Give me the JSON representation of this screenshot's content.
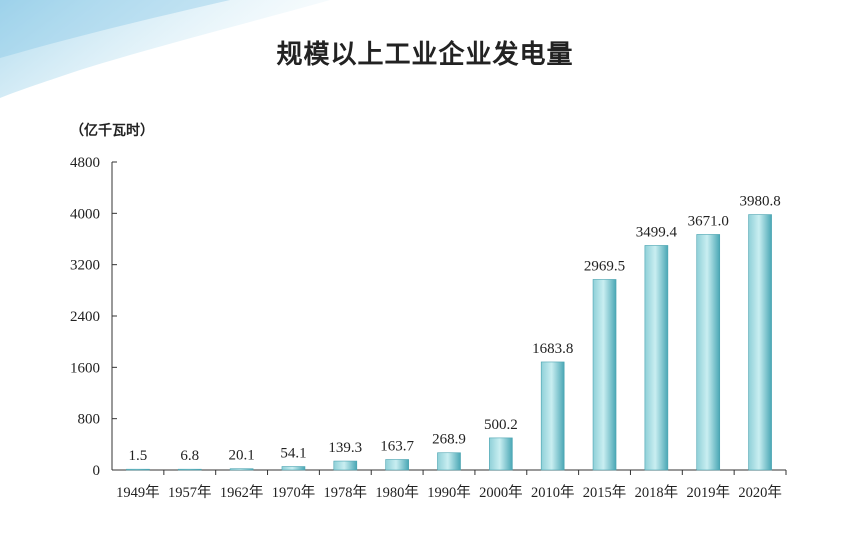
{
  "title": "规模以上工业企业发电量",
  "unit_label": "（亿千瓦时）",
  "chart_data": {
    "type": "bar",
    "title": "规模以上工业企业发电量",
    "ylabel": "（亿千瓦时）",
    "xlabel": "",
    "ylim": [
      0,
      4800
    ],
    "yticks": [
      0,
      800,
      1600,
      2400,
      3200,
      4000,
      4800
    ],
    "grid": false,
    "categories": [
      "1949年",
      "1957年",
      "1962年",
      "1970年",
      "1978年",
      "1980年",
      "1990年",
      "2000年",
      "2010年",
      "2015年",
      "2018年",
      "2019年",
      "2020年"
    ],
    "values": [
      1.5,
      6.8,
      20.1,
      54.1,
      139.3,
      163.7,
      268.9,
      500.2,
      1683.8,
      2969.5,
      3499.4,
      3671.0,
      3980.8
    ],
    "value_labels": [
      "1.5",
      "6.8",
      "20.1",
      "54.1",
      "139.3",
      "163.7",
      "268.9",
      "500.2",
      "1683.8",
      "2969.5",
      "3499.4",
      "3671.0",
      "3980.8"
    ],
    "bar_color": "#5bbcc8"
  }
}
